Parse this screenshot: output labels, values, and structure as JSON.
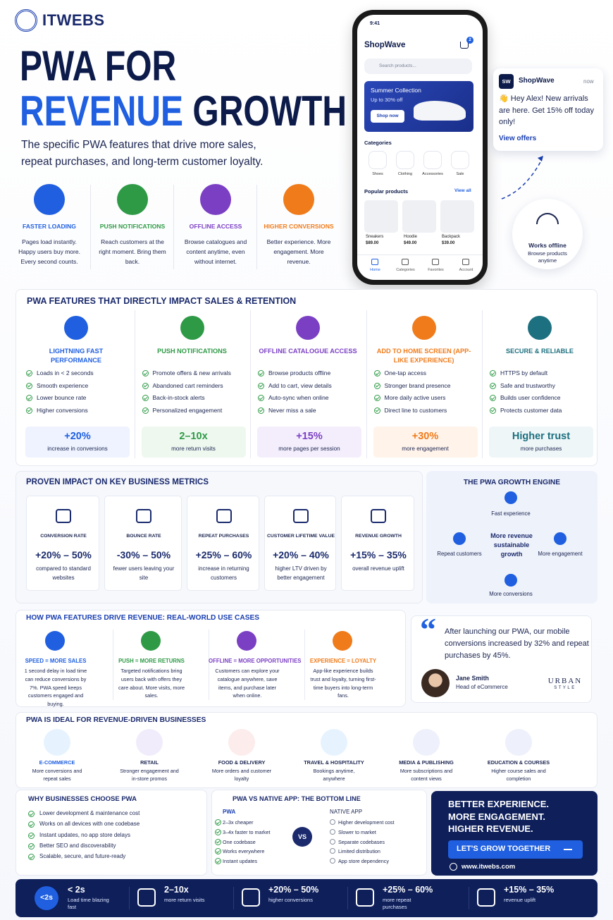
{
  "header": {
    "brand": "ITWEBS",
    "title_line1": "PWA FOR",
    "title_line2a": "REVENUE",
    "title_line2b": "GROWTH",
    "subtitle": "The specific PWA features that drive more sales, repeat purchases, and long-term customer loyalty."
  },
  "top_features": [
    {
      "title": "FASTER LOADING",
      "text": "Pages load instantly. Happy users buy more. Every second counts."
    },
    {
      "title": "PUSH NOTIFICATIONS",
      "text": "Reach customers at the right moment. Bring them back."
    },
    {
      "title": "OFFLINE ACCESS",
      "text": "Browse catalogues and content anytime, even without internet."
    },
    {
      "title": "HIGHER CONVERSIONS",
      "text": "Better experience. More engagement. More revenue."
    }
  ],
  "phone": {
    "time": "9:41",
    "app": "ShopWave",
    "cart_count": "2",
    "search": "Search products...",
    "banner_title": "Summer Collection",
    "banner_sub": "Up to 30% off",
    "banner_button": "Shop now",
    "categories_title": "Categories",
    "categories": [
      "Shoes",
      "Clothing",
      "Accessories",
      "Sale"
    ],
    "popular_title": "Popular products",
    "view_all": "View all",
    "products": [
      {
        "name": "Sneakers",
        "price": "$89.00"
      },
      {
        "name": "Hoodie",
        "price": "$49.00"
      },
      {
        "name": "Backpack",
        "price": "$39.00"
      }
    ],
    "nav": [
      "Home",
      "Categories",
      "Favorites",
      "Account"
    ]
  },
  "notification": {
    "icon": "SW",
    "app": "ShopWave",
    "time": "now",
    "message": "👋 Hey Alex! New arrivals are here. Get 15% off today only!",
    "action": "View offers"
  },
  "offline_badge": {
    "title": "Works offline",
    "text": "Browse products anytime"
  },
  "features_section": {
    "title": "PWA FEATURES THAT DIRECTLY IMPACT SALES & RETENTION",
    "items": [
      {
        "title": "LIGHTNING FAST PERFORMANCE",
        "bullets": [
          "Loads in < 2 seconds",
          "Smooth experience",
          "Lower bounce rate",
          "Higher conversions"
        ],
        "stat": "+20%",
        "stat_label": "increase in conversions"
      },
      {
        "title": "PUSH NOTIFICATIONS",
        "bullets": [
          "Promote offers & new arrivals",
          "Abandoned cart reminders",
          "Back-in-stock alerts",
          "Personalized engagement"
        ],
        "stat": "2–10x",
        "stat_label": "more return visits"
      },
      {
        "title": "OFFLINE CATALOGUE ACCESS",
        "bullets": [
          "Browse products offline",
          "Add to cart, view details",
          "Auto-sync when online",
          "Never miss a sale"
        ],
        "stat": "+15%",
        "stat_label": "more pages per session"
      },
      {
        "title": "ADD TO HOME SCREEN (APP-LIKE EXPERIENCE)",
        "bullets": [
          "One-tap access",
          "Stronger brand presence",
          "More daily active users",
          "Direct line to customers"
        ],
        "stat": "+30%",
        "stat_label": "more engagement"
      },
      {
        "title": "SECURE & RELIABLE",
        "bullets": [
          "HTTPS by default",
          "Safe and trustworthy",
          "Builds user confidence",
          "Protects customer data"
        ],
        "stat": "Higher trust",
        "stat_label": "more purchases"
      }
    ]
  },
  "metrics": {
    "title": "PROVEN IMPACT ON KEY BUSINESS METRICS",
    "items": [
      {
        "label": "CONVERSION RATE",
        "value": "+20% – 50%",
        "desc": "compared to standard websites"
      },
      {
        "label": "BOUNCE RATE",
        "value": "-30% – 50%",
        "desc": "fewer users leaving your site"
      },
      {
        "label": "REPEAT PURCHASES",
        "value": "+25% – 60%",
        "desc": "increase in returning customers"
      },
      {
        "label": "CUSTOMER LIFETIME VALUE",
        "value": "+20% – 40%",
        "desc": "higher LTV driven by better engagement"
      },
      {
        "label": "REVENUE GROWTH",
        "value": "+15% – 35%",
        "desc": "overall revenue uplift"
      }
    ]
  },
  "engine": {
    "title": "THE PWA GROWTH ENGINE",
    "center": "More revenue sustainable growth",
    "nodes": [
      "Fast experience",
      "More engagement",
      "More conversions",
      "Repeat customers"
    ]
  },
  "use_cases": {
    "title": "HOW PWA FEATURES DRIVE REVENUE: REAL-WORLD USE CASES",
    "items": [
      {
        "title": "SPEED = MORE SALES",
        "text": "1 second delay in load time can reduce conversions by 7%. PWA speed keeps customers engaged and buying."
      },
      {
        "title": "PUSH = MORE RETURNS",
        "text": "Targeted notifications bring users back with offers they care about. More visits, more sales."
      },
      {
        "title": "OFFLINE = MORE OPPORTUNITIES",
        "text": "Customers can explore your catalogue anywhere, save items, and purchase later when online."
      },
      {
        "title": "EXPERIENCE = LOYALTY",
        "text": "App-like experience builds trust and loyalty, turning first-time buyers into long-term fans."
      }
    ]
  },
  "testimonial": {
    "quote_mark": "“",
    "quote": "After launching our PWA, our mobile conversions increased by 32% and repeat purchases by 45%.",
    "name": "Jane Smith",
    "role": "Head of eCommerce",
    "logo_top": "URBAN",
    "logo_bottom": "STYLE"
  },
  "ideal": {
    "title": "PWA IS IDEAL FOR REVENUE-DRIVEN BUSINESSES",
    "items": [
      {
        "title": "E-COMMERCE",
        "text": "More conversions and repeat sales"
      },
      {
        "title": "RETAIL",
        "text": "Stronger engagement and in-store promos"
      },
      {
        "title": "FOOD & DELIVERY",
        "text": "More orders and customer loyalty"
      },
      {
        "title": "TRAVEL & HOSPITALITY",
        "text": "Bookings anytime, anywhere"
      },
      {
        "title": "MEDIA & PUBLISHING",
        "text": "More subscriptions and content views"
      },
      {
        "title": "EDUCATION & COURSES",
        "text": "Higher course sales and completion"
      }
    ]
  },
  "why": {
    "title": "WHY BUSINESSES CHOOSE PWA",
    "items": [
      "Lower development & maintenance cost",
      "Works on all devices with one codebase",
      "Instant updates, no app store delays",
      "Better SEO and discoverability",
      "Scalable, secure, and future-ready"
    ]
  },
  "comparison": {
    "title": "PWA VS NATIVE APP: THE BOTTOM LINE",
    "pwa_label": "PWA",
    "pwa_items": [
      "2–3x cheaper",
      "3–4x faster to market",
      "One codebase",
      "Works everywhere",
      "Instant updates"
    ],
    "vs": "VS",
    "native_label": "NATIVE APP",
    "native_items": [
      "Higher development cost",
      "Slower to market",
      "Separate codebases",
      "Limited distribution",
      "App store dependency"
    ]
  },
  "cta": {
    "headline": [
      "BETTER EXPERIENCE.",
      "MORE ENGAGEMENT.",
      "HIGHER REVENUE."
    ],
    "button": "LET'S GROW TOGETHER",
    "url": "www.itwebs.com"
  },
  "footer": {
    "badge": "<2s",
    "items": [
      {
        "big": "< 2s",
        "small": "Load time blazing fast"
      },
      {
        "big": "2–10x",
        "small": "more return visits"
      },
      {
        "big": "+20% – 50%",
        "small": "higher conversions"
      },
      {
        "big": "+25% – 60%",
        "small": "more repeat purchases"
      },
      {
        "big": "+15% – 35%",
        "small": "revenue uplift"
      }
    ]
  }
}
